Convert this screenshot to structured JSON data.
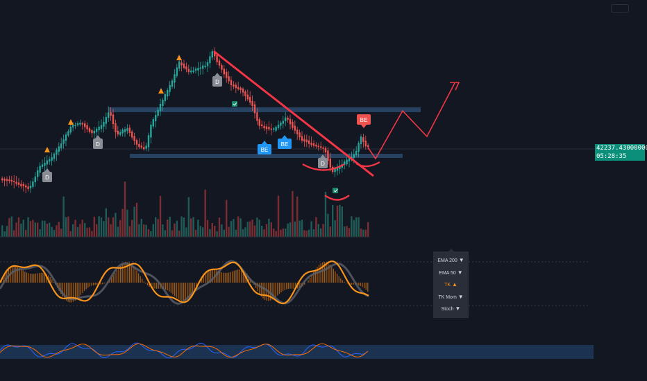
{
  "price_label": {
    "price": "42237.43000000",
    "countdown": "05:28:35"
  },
  "colors": {
    "background": "#131722",
    "bull": "#26a69a",
    "bear": "#ef5350",
    "trendline": "#f23645",
    "zone": "#2a4a6b",
    "orange": "#f7931a",
    "gray": "#787b86",
    "blue_tag": "#2196f3",
    "price_tag": "#0c8f7a"
  },
  "markers": {
    "d_tags": [
      "D",
      "D",
      "D",
      "D"
    ],
    "be_tags": [
      "BE",
      "BE"
    ],
    "be_bear_tag": "BE",
    "warning_icon": "warning-triangle-icon",
    "check_icon": "check-icon"
  },
  "legend": {
    "items": [
      {
        "label": "EMA 200",
        "arrow": "▼",
        "active": false
      },
      {
        "label": "EMA 50",
        "arrow": "▼",
        "active": false
      },
      {
        "label": "TK",
        "arrow": "▲",
        "active": true
      },
      {
        "label": "TK Mom",
        "arrow": "▼",
        "active": false
      },
      {
        "label": "Stoch",
        "arrow": "▼",
        "active": false
      }
    ]
  }
}
